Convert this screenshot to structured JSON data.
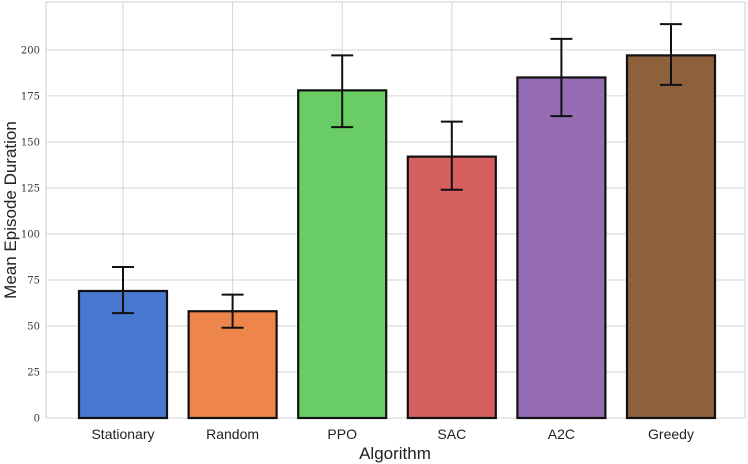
{
  "chart_data": {
    "type": "bar",
    "title": "",
    "xlabel": "Algorithm",
    "ylabel": "Mean Episode Duration",
    "categories": [
      "Stationary",
      "Random",
      "PPO",
      "SAC",
      "A2C",
      "Greedy"
    ],
    "values": [
      69,
      58,
      178,
      142,
      185,
      197
    ],
    "error_low": [
      57,
      49,
      158,
      124,
      164,
      181
    ],
    "error_high": [
      82,
      67,
      197,
      161,
      206,
      214
    ],
    "colors": [
      "#4878d0",
      "#ee854a",
      "#6acc64",
      "#d65f5f",
      "#956cb4",
      "#8c613c"
    ],
    "ylim": [
      0,
      226
    ],
    "yticks": [
      0,
      25,
      50,
      75,
      100,
      125,
      150,
      175,
      200
    ],
    "grid": true
  }
}
